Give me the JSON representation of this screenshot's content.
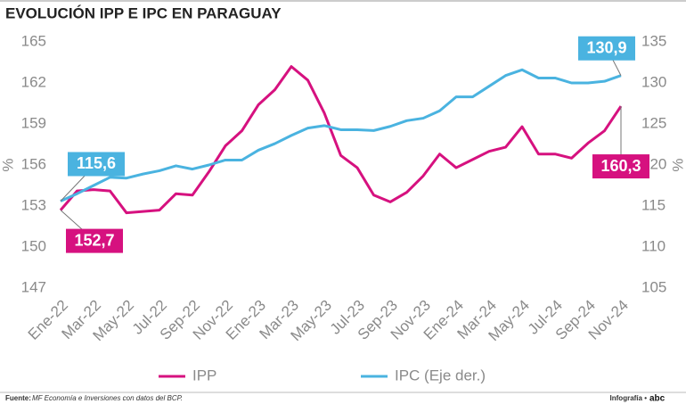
{
  "chart_data": {
    "type": "line",
    "title": "EVOLUCIÓN IPP E IPC EN PARAGUAY",
    "ylabel": "%",
    "y2label": "%",
    "categories": [
      "Ene-22",
      null,
      "Mar-22",
      null,
      "May-22",
      null,
      "Jul-22",
      null,
      "Sep-22",
      null,
      "Nov-22",
      null,
      "Ene-23",
      null,
      "Mar-23",
      null,
      "May-23",
      null,
      "Jul-23",
      null,
      "Sep-23",
      null,
      "Nov-23",
      null,
      "Ene-24",
      null,
      "Mar-24",
      null,
      "May-24",
      null,
      "Jul-24",
      null,
      "Sep-24",
      null,
      "Nov-24"
    ],
    "ylim": [
      147,
      165
    ],
    "yticks": [
      147,
      150,
      153,
      156,
      159,
      162,
      165
    ],
    "y2lim": [
      105,
      135
    ],
    "y2ticks": [
      105,
      110,
      115,
      120,
      125,
      130,
      135
    ],
    "series": [
      {
        "name": "IPP",
        "color": "#d6117f",
        "values": [
          152.7,
          154.1,
          154.2,
          154.1,
          152.5,
          152.6,
          152.7,
          153.9,
          153.8,
          155.5,
          157.4,
          158.5,
          160.4,
          161.5,
          163.2,
          162.2,
          159.8,
          156.7,
          155.8,
          153.8,
          153.3,
          154.0,
          155.2,
          156.8,
          155.8,
          156.4,
          157.0,
          157.3,
          158.8,
          156.8,
          156.8,
          156.5,
          157.6,
          158.5,
          160.3
        ],
        "value_labels": [
          "152,7",
          null,
          null,
          null,
          null,
          null,
          null,
          null,
          null,
          null,
          null,
          null,
          null,
          null,
          null,
          null,
          null,
          null,
          null,
          null,
          null,
          null,
          null,
          null,
          null,
          null,
          null,
          null,
          null,
          null,
          null,
          null,
          null,
          null,
          "160,3"
        ]
      },
      {
        "name": "IPC (Eje der.)",
        "color": "#4ab3e0",
        "axis": "y2",
        "values": [
          115.6,
          116.5,
          117.5,
          118.5,
          118.4,
          118.9,
          119.3,
          119.9,
          119.5,
          120.0,
          120.6,
          120.6,
          121.8,
          122.6,
          123.6,
          124.5,
          124.8,
          124.3,
          124.3,
          124.2,
          124.7,
          125.4,
          125.7,
          126.6,
          128.3,
          128.3,
          129.6,
          130.9,
          131.6,
          130.6,
          130.6,
          130.0,
          130.0,
          130.2,
          130.9
        ],
        "value_labels": [
          "115,6",
          null,
          null,
          null,
          null,
          null,
          null,
          null,
          null,
          null,
          null,
          null,
          null,
          null,
          null,
          null,
          null,
          null,
          null,
          null,
          null,
          null,
          null,
          null,
          null,
          null,
          null,
          null,
          null,
          null,
          null,
          null,
          null,
          null,
          "130,9"
        ]
      }
    ],
    "source_label": "Fuente:",
    "source": "MF Economía e Inversiones con datos del BCP.",
    "credit": "Infografía •",
    "logo": "abc"
  }
}
